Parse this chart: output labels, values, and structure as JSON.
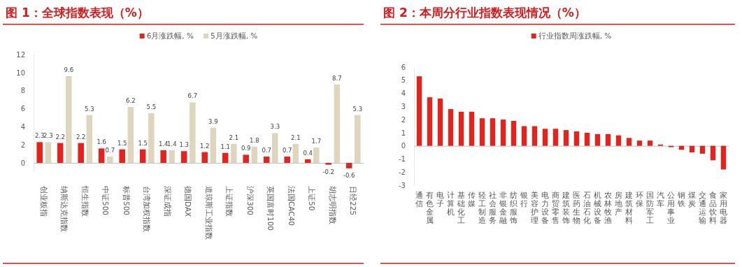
{
  "chart_data": [
    {
      "type": "bar",
      "title": "图 1：全球指数表现（%）",
      "categories": [
        "创业板指",
        "纳斯达克指数",
        "恒生指数",
        "中证500",
        "标普500",
        "台湾加权指数",
        "深证成指",
        "德国DAX",
        "道琼斯工业指数",
        "上证指数",
        "沪深300",
        "英国富时100",
        "法国CAC40",
        "上证50",
        "胡志明指数",
        "日经225"
      ],
      "series": [
        {
          "name": "6月涨跌幅, %",
          "color": "#e3231c",
          "values": [
            2.3,
            2.2,
            2.2,
            1.6,
            1.5,
            1.5,
            1.4,
            1.3,
            1.2,
            1.1,
            0.9,
            0.7,
            0.7,
            0.4,
            -0.2,
            -0.6
          ]
        },
        {
          "name": "5月涨跌幅, %",
          "color": "#ddd5bd",
          "values": [
            2.3,
            9.6,
            5.3,
            0.7,
            6.2,
            5.5,
            1.4,
            6.7,
            3.9,
            2.1,
            1.8,
            3.3,
            2.1,
            1.7,
            8.7,
            5.3
          ]
        }
      ],
      "ylim": [
        -1,
        12
      ],
      "yticks": [
        0,
        2,
        4,
        6,
        8,
        10,
        12
      ],
      "legend": "top",
      "data_labels": true
    },
    {
      "type": "bar",
      "title": "图 2：本周分行业指数表现情况（%）",
      "categories": [
        "通信",
        "有色金属",
        "电子",
        "计算机",
        "基础化工",
        "传媒",
        "轻工制造",
        "社会服务",
        "非银金融",
        "纺织服饰",
        "银行",
        "美容护理",
        "电力设备",
        "商贸零售",
        "建筑装饰",
        "医药生物",
        "石油石化",
        "机械设备",
        "农林牧渔",
        "房地产",
        "建筑材料",
        "环保",
        "国防军工",
        "汽车",
        "公用事业",
        "钢铁",
        "煤炭",
        "交通运输",
        "食品饮料",
        "家用电器"
      ],
      "series": [
        {
          "name": "行业指数周涨跌幅, %",
          "color": "#e3231c",
          "values": [
            5.3,
            3.7,
            3.6,
            2.8,
            2.6,
            2.6,
            2.1,
            2.1,
            2.0,
            1.9,
            1.5,
            1.5,
            1.3,
            1.3,
            1.2,
            1.1,
            1.0,
            0.9,
            0.9,
            0.8,
            0.6,
            0.4,
            0.4,
            0.1,
            -0.1,
            -0.3,
            -0.5,
            -0.6,
            -1.1,
            -1.8
          ]
        }
      ],
      "ylim": [
        -3,
        6
      ],
      "yticks": [
        -3,
        -2,
        -1,
        0,
        1,
        2,
        3,
        4,
        5,
        6
      ],
      "legend": "top"
    }
  ]
}
